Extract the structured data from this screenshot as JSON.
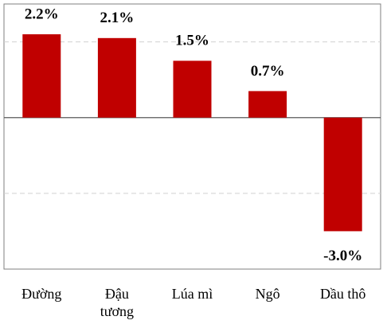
{
  "chart_data": {
    "type": "bar",
    "categories": [
      "Đường",
      "Đậu tương",
      "Lúa mì",
      "Ngô",
      "Dầu thô"
    ],
    "values": [
      2.2,
      2.1,
      1.5,
      0.7,
      -3.0
    ],
    "value_labels": [
      "2.2%",
      "2.1%",
      "1.5%",
      "0.7%",
      "-3.0%"
    ],
    "color": "#c00000",
    "ylim": [
      -4,
      3
    ],
    "yticks": [
      -2,
      0,
      2
    ],
    "grid": true
  }
}
